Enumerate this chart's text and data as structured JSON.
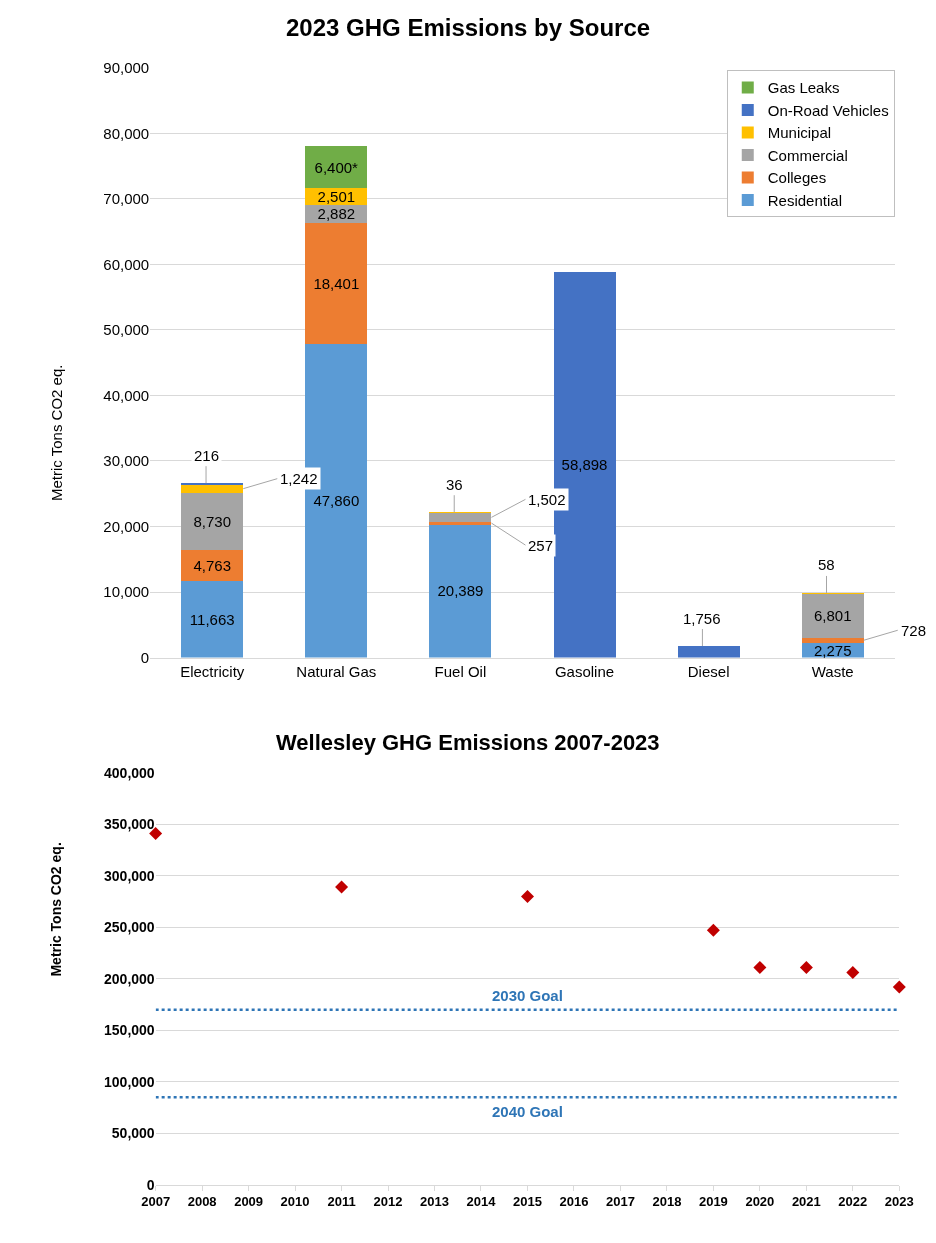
{
  "chart_data": [
    {
      "type": "bar",
      "title": "2023 GHG Emissions by Source",
      "ylabel": "Metric Tons CO2 eq.",
      "categories": [
        "Electricity",
        "Natural Gas",
        "Fuel Oil",
        "Gasoline",
        "Diesel",
        "Waste"
      ],
      "stacked": true,
      "ylim": [
        0,
        90000
      ],
      "yticks": [
        0,
        {
          "value": 10000,
          "label": "10,000"
        },
        {
          "value": 20000,
          "label": "20,000"
        },
        {
          "value": 30000,
          "label": "30,000"
        },
        {
          "value": 40000,
          "label": "40,000"
        },
        {
          "value": 50000,
          "label": "50,000"
        },
        {
          "value": 60000,
          "label": "60,000"
        },
        {
          "value": 70000,
          "label": "70,000"
        },
        {
          "value": 80000,
          "label": "80,000"
        },
        {
          "value": 90000,
          "label": "90,000"
        }
      ],
      "grid": "y",
      "legend": "top right",
      "series": [
        {
          "name": "Residential",
          "color": "#5b9bd5",
          "values": [
            11663,
            47860,
            20389,
            null,
            null,
            2275
          ],
          "value_labels": [
            "11,663",
            "47,860",
            "20,389",
            null,
            null,
            "2,275"
          ]
        },
        {
          "name": "Colleges",
          "color": "#ed7d31",
          "values": [
            4763,
            18401,
            257,
            null,
            null,
            728
          ],
          "value_labels": [
            "4,763",
            "18,401",
            "257",
            null,
            null,
            "728"
          ]
        },
        {
          "name": "Commercial",
          "color": "#a5a5a5",
          "values": [
            8730,
            2882,
            1502,
            null,
            null,
            6801
          ],
          "value_labels": [
            "8,730",
            "2,882",
            "1,502",
            null,
            null,
            "6,801"
          ]
        },
        {
          "name": "Municipal",
          "color": "#ffc000",
          "values": [
            1242,
            2501,
            36,
            null,
            null,
            58
          ],
          "value_labels": [
            "1,242",
            "2,501",
            "36",
            null,
            null,
            "58"
          ]
        },
        {
          "name": "On-Road Vehicles",
          "color": "#4472c4",
          "values": [
            216,
            null,
            null,
            58898,
            1756,
            null
          ],
          "value_labels": [
            "216",
            null,
            null,
            "58,898",
            "1,756",
            null
          ]
        },
        {
          "name": "Gas Leaks",
          "color": "#70ad47",
          "values": [
            null,
            6400,
            null,
            null,
            null,
            null
          ],
          "value_labels": [
            null,
            "6,400*",
            null,
            null,
            null,
            null
          ]
        }
      ]
    },
    {
      "type": "scatter",
      "title": "Wellesley GHG Emissions 2007-2023",
      "ylabel": "Metric Tons CO2 eq.",
      "x": [
        2007,
        2011,
        2015,
        2019,
        2020,
        2021,
        2022,
        2023
      ],
      "xlim": [
        2007,
        2023
      ],
      "xticks": [
        2007,
        2008,
        2009,
        2010,
        2011,
        2012,
        2013,
        2014,
        2015,
        2016,
        2017,
        2018,
        2019,
        2020,
        2021,
        2022,
        2023
      ],
      "ylim": [
        0,
        400000
      ],
      "yticks": [
        0,
        {
          "value": 50000,
          "label": "50,000"
        },
        {
          "value": 100000,
          "label": "100,000"
        },
        {
          "value": 150000,
          "label": "150,000"
        },
        {
          "value": 200000,
          "label": "200,000"
        },
        {
          "value": 250000,
          "label": "250,000"
        },
        {
          "value": 300000,
          "label": "300,000"
        },
        {
          "value": 350000,
          "label": "350,000"
        },
        {
          "value": 400000,
          "label": "400,000"
        }
      ],
      "grid": "y",
      "marker": "diamond",
      "series": [
        {
          "color": "#c00000",
          "values": [
            341000,
            289000,
            280000,
            247000,
            211000,
            211000,
            206000,
            192000
          ]
        }
      ],
      "ref_lines": [
        {
          "axis": "y",
          "value": 170000,
          "label": "2030 Goal",
          "color": "#2e75b6",
          "line_style": "dotted"
        },
        {
          "axis": "y",
          "value": 85000,
          "label": "2040 Goal",
          "color": "#2e75b6",
          "line_style": "dotted"
        }
      ]
    }
  ]
}
